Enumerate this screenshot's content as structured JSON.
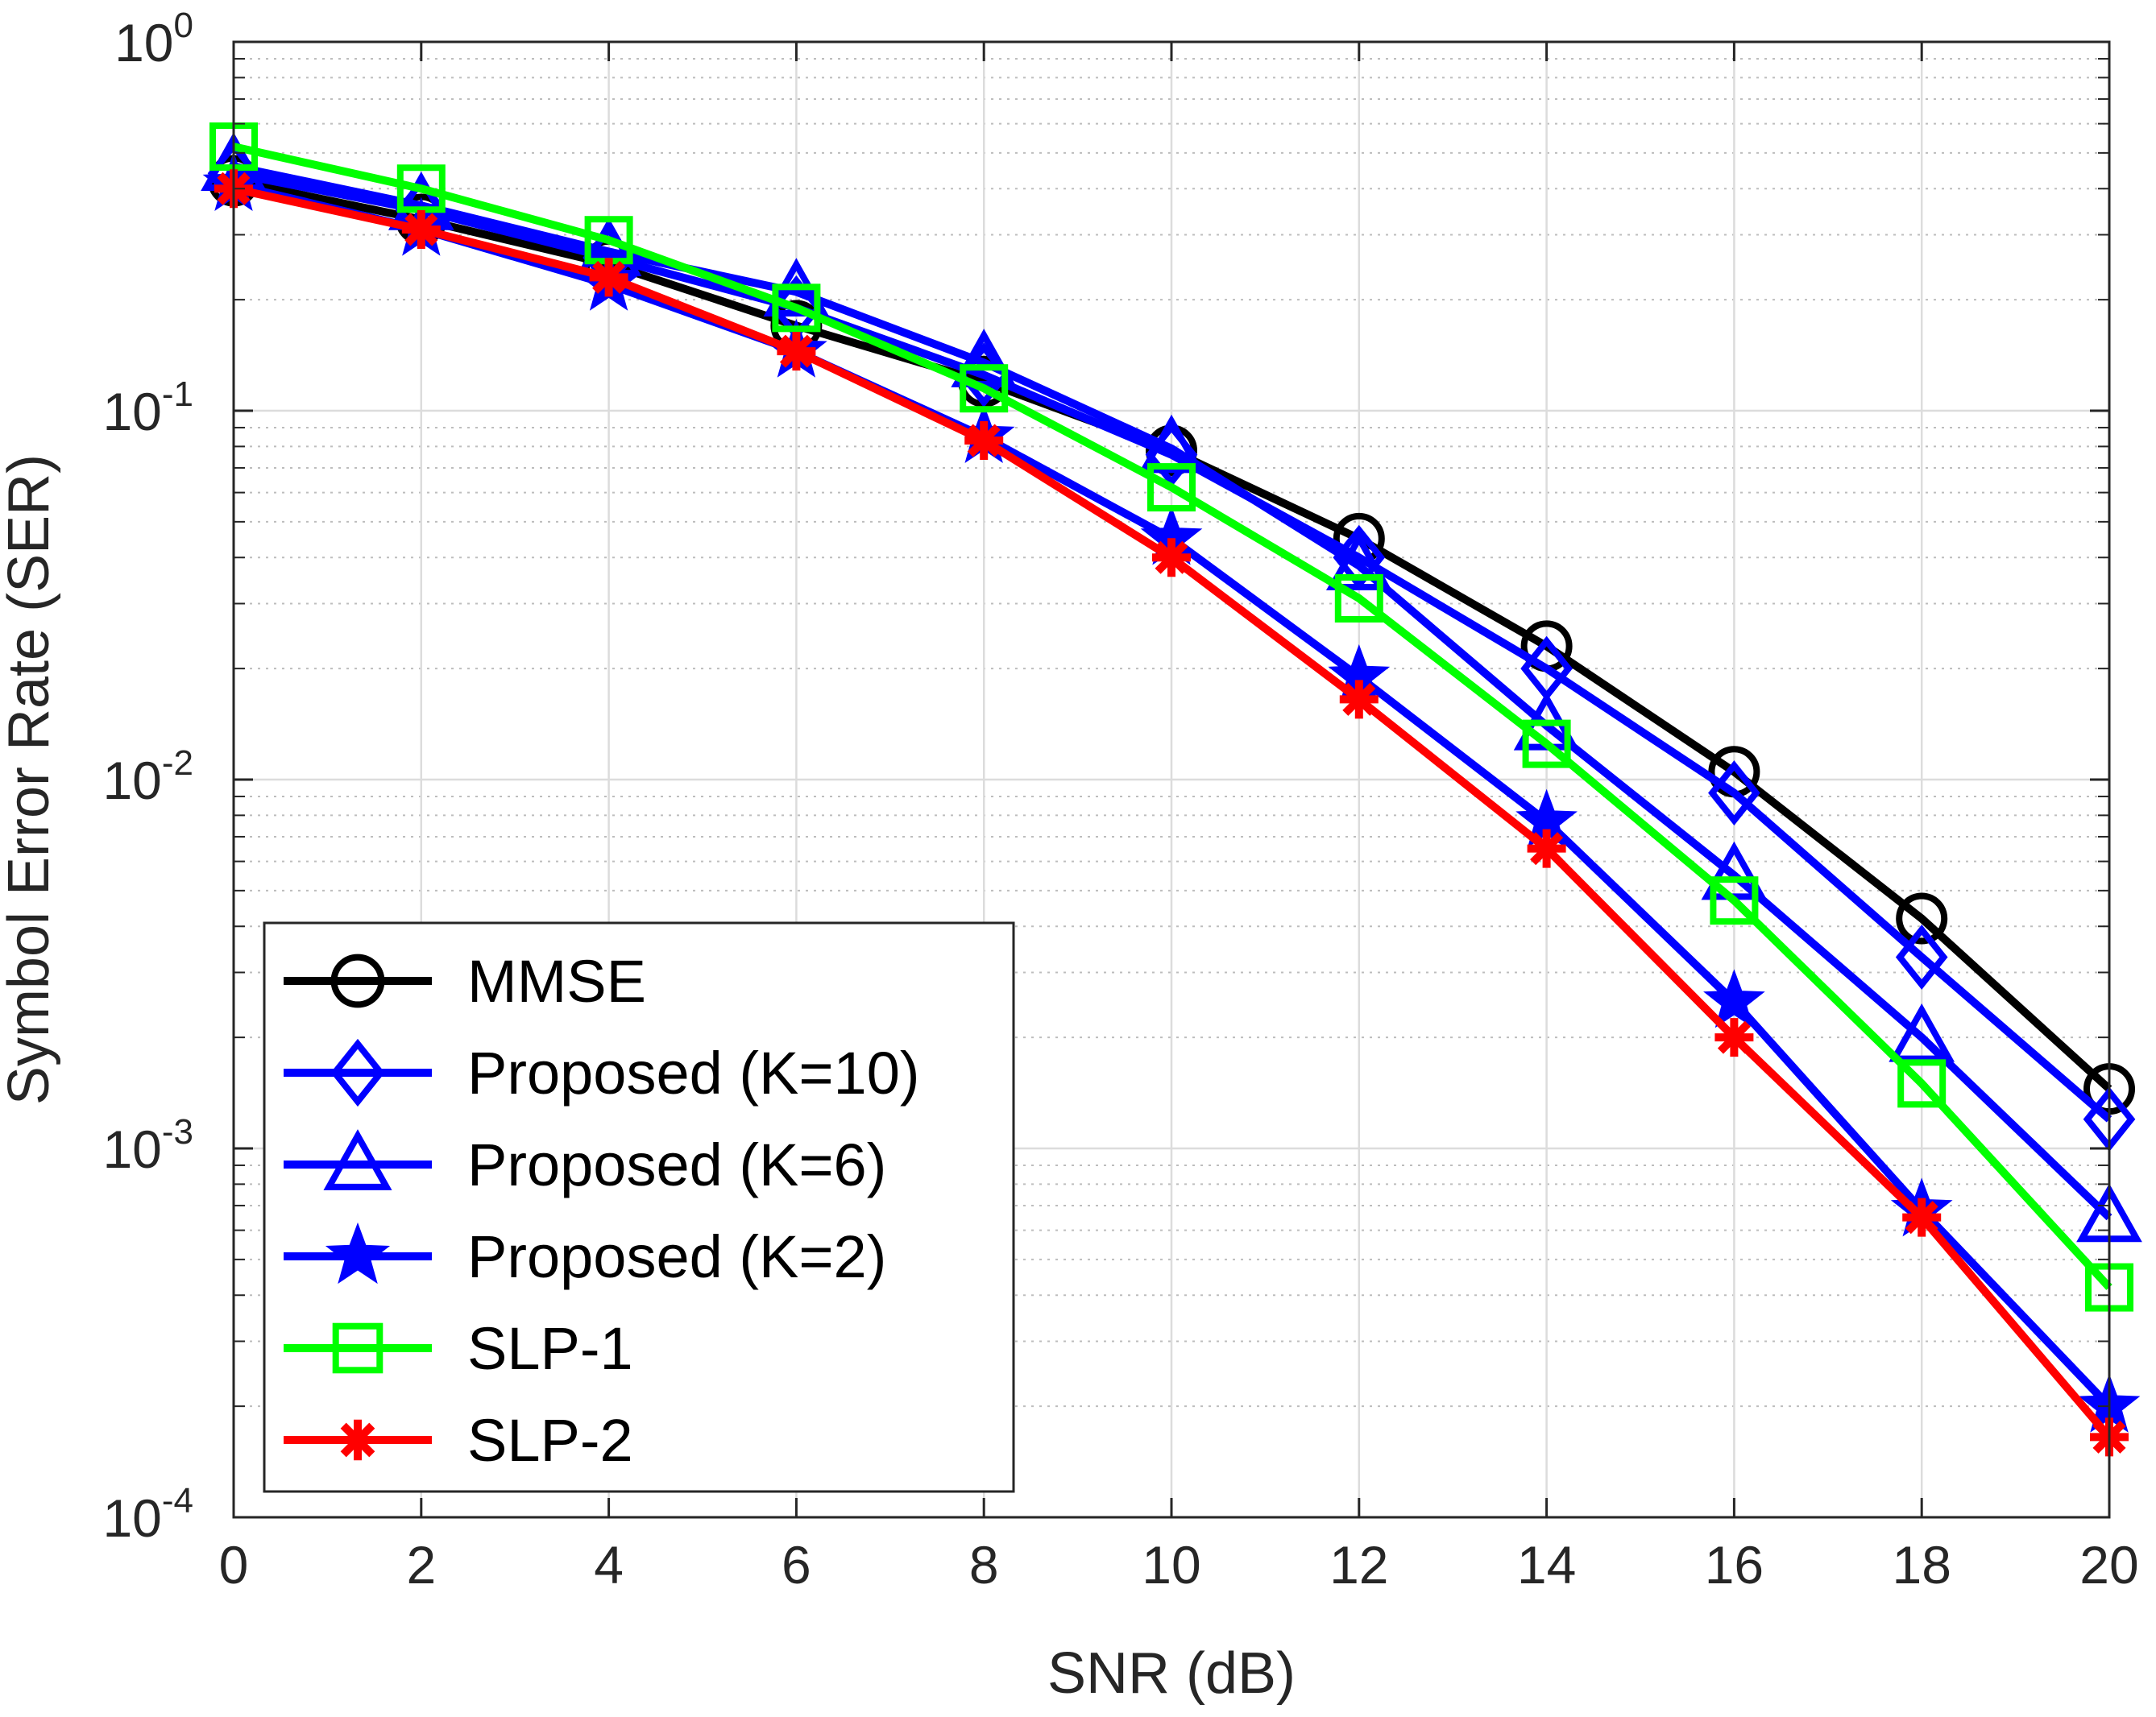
{
  "chart_data": {
    "type": "line",
    "xlabel": "SNR (dB)",
    "ylabel": "Symbol Error Rate (SER)",
    "xlim": [
      0,
      20
    ],
    "ylim": [
      0.0001,
      1
    ],
    "yscale": "log",
    "grid": true,
    "minor_grid": true,
    "legend_position": "bottom-left",
    "x": [
      0,
      2,
      4,
      6,
      8,
      10,
      12,
      14,
      16,
      18,
      20
    ],
    "x_ticks": [
      "0",
      "2",
      "4",
      "6",
      "8",
      "10",
      "12",
      "14",
      "16",
      "18",
      "20"
    ],
    "y_ticks": [
      {
        "value": 1,
        "base": "10",
        "exp": "0"
      },
      {
        "value": 0.1,
        "base": "10",
        "exp": "-1"
      },
      {
        "value": 0.01,
        "base": "10",
        "exp": "-2"
      },
      {
        "value": 0.001,
        "base": "10",
        "exp": "-3"
      },
      {
        "value": 0.0001,
        "base": "10",
        "exp": "-4"
      }
    ],
    "series": [
      {
        "name": "MMSE",
        "color": "#000000",
        "marker": "circle",
        "values": [
          0.42,
          0.33,
          0.25,
          0.17,
          0.12,
          0.078,
          0.045,
          0.023,
          0.0105,
          0.0042,
          0.00145
        ]
      },
      {
        "name": "Proposed (K=10)",
        "color": "#0000ff",
        "marker": "diamond",
        "values": [
          0.44,
          0.35,
          0.26,
          0.19,
          0.125,
          0.076,
          0.04,
          0.02,
          0.0092,
          0.0033,
          0.0012
        ]
      },
      {
        "name": "Proposed (K=6)",
        "color": "#0000ff",
        "marker": "triangle",
        "values": [
          0.46,
          0.36,
          0.27,
          0.21,
          0.135,
          0.079,
          0.038,
          0.014,
          0.0055,
          0.002,
          0.00065
        ]
      },
      {
        "name": "Proposed (K=2)",
        "color": "#0000ff",
        "marker": "star",
        "values": [
          0.41,
          0.31,
          0.22,
          0.145,
          0.085,
          0.045,
          0.019,
          0.0077,
          0.0025,
          0.00068,
          0.0002
        ]
      },
      {
        "name": "SLP-1",
        "color": "#00ff00",
        "marker": "square",
        "values": [
          0.52,
          0.4,
          0.29,
          0.19,
          0.115,
          0.062,
          0.031,
          0.0125,
          0.0047,
          0.0015,
          0.00042
        ]
      },
      {
        "name": "SLP-2",
        "color": "#ff0000",
        "marker": "asterisk",
        "values": [
          0.4,
          0.31,
          0.23,
          0.145,
          0.083,
          0.04,
          0.0165,
          0.0065,
          0.002,
          0.00065,
          0.000165
        ]
      }
    ]
  }
}
